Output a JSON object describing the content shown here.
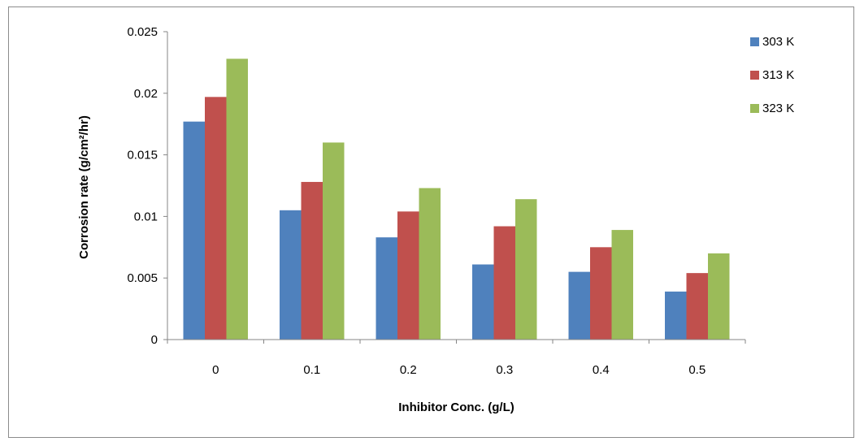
{
  "chart_data": {
    "type": "bar",
    "title": "",
    "xlabel": "Inhibitor Conc. (g/L)",
    "ylabel": "Corrosion rate (g/cm²/hr)",
    "categories": [
      "0",
      "0.1",
      "0.2",
      "0.3",
      "0.4",
      "0.5"
    ],
    "ylim": [
      0,
      0.025
    ],
    "yticks": [
      "0",
      "0.005",
      "0.01",
      "0.015",
      "0.02",
      "0.025"
    ],
    "grid": false,
    "legend_position": "top-right",
    "series": [
      {
        "name": "303 K",
        "color": "#4f81bd",
        "values": [
          0.0177,
          0.0105,
          0.0083,
          0.0061,
          0.0055,
          0.0039
        ]
      },
      {
        "name": "313 K",
        "color": "#c0504d",
        "values": [
          0.0197,
          0.0128,
          0.0104,
          0.0092,
          0.0075,
          0.0054
        ]
      },
      {
        "name": "323 K",
        "color": "#9bbb59",
        "values": [
          0.0228,
          0.016,
          0.0123,
          0.0114,
          0.0089,
          0.007
        ]
      }
    ]
  }
}
